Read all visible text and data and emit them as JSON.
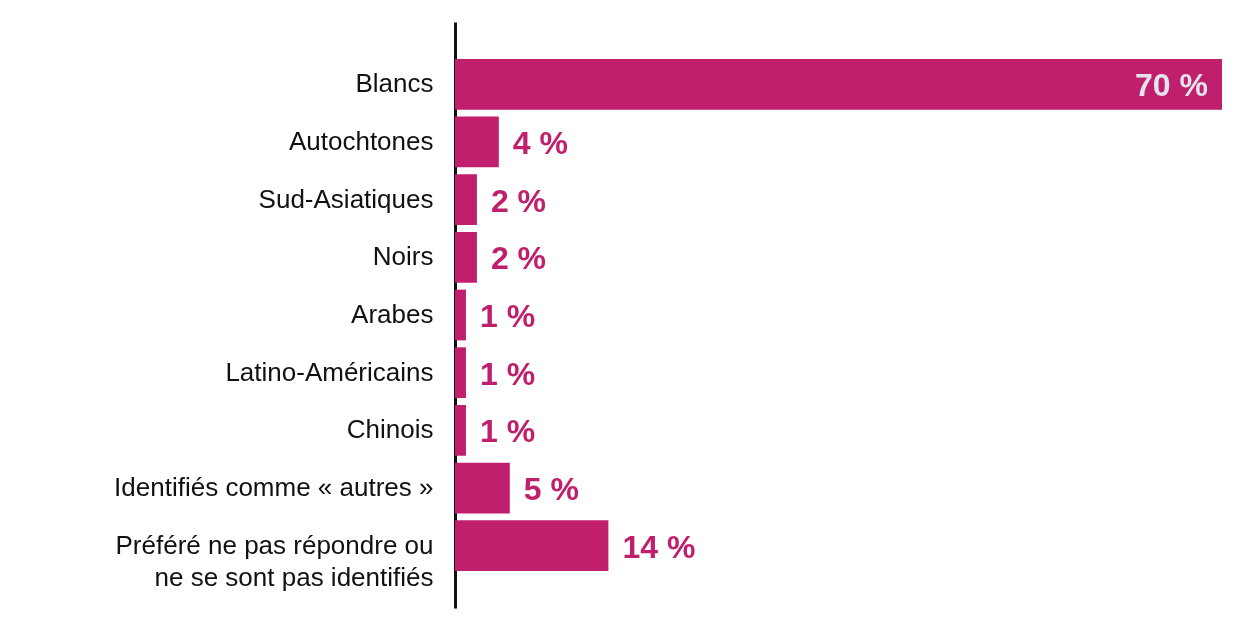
{
  "chart_data": {
    "type": "bar",
    "orientation": "horizontal",
    "color": "#c01f6e",
    "categories": [
      "Blancs",
      "Autochtones",
      "Sud-Asiatiques",
      "Noirs",
      "Arabes",
      "Latino-Américains",
      "Chinois",
      "Identifiés comme « autres »",
      "Préféré ne pas répondre ou ne se sont pas identifiés"
    ],
    "values": [
      70,
      4,
      2,
      2,
      1,
      1,
      1,
      5,
      14
    ],
    "value_labels": [
      "70 %",
      "4 %",
      "2 %",
      "2 %",
      "1 %",
      "1 %",
      "1 %",
      "5 %",
      "14 %"
    ]
  }
}
